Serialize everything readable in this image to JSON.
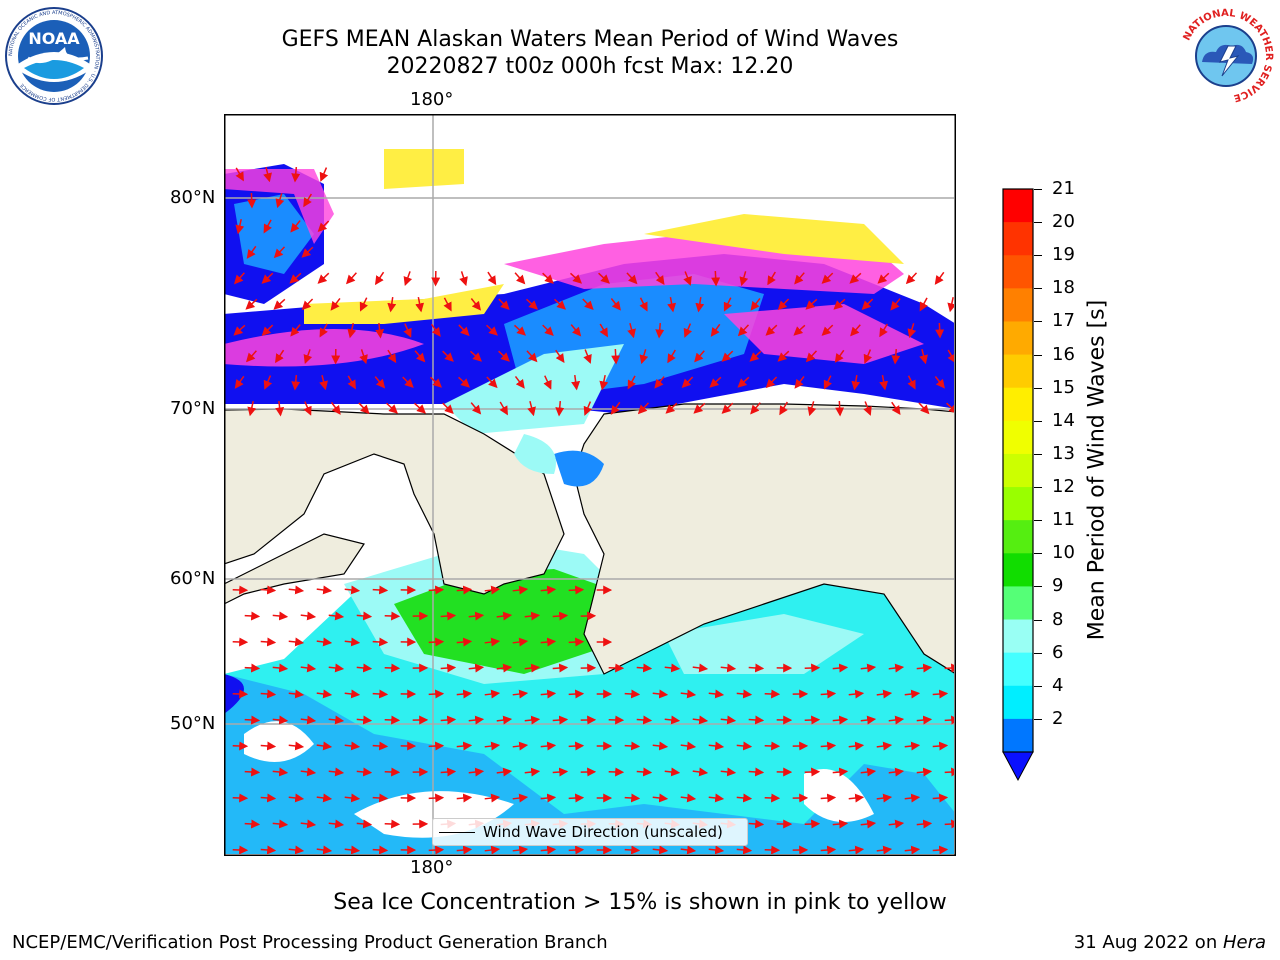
{
  "header": {
    "title_line1": "GEFS MEAN Alaskan Waters Mean Period of Wind Waves",
    "title_line2": "20220827 t00z 000h fcst   Max: 12.20"
  },
  "logos": {
    "left_text": "NOAA",
    "left_ring": "NATIONAL OCEANIC AND ATMOSPHERIC ADMINISTRATION · U.S. DEPARTMENT OF COMMERCE",
    "right_ring": "NATIONAL WEATHER SERVICE"
  },
  "map": {
    "lon_label_top": "180°",
    "lon_label_bottom": "180°",
    "lat_labels": [
      "80°N",
      "70°N",
      "60°N",
      "50°N"
    ],
    "legend_label": "Wind Wave Direction (unscaled)",
    "colors": {
      "land": "#efedde",
      "ocean_cyan": "#2ff0f0",
      "ocean_light": "#9cfaf6",
      "blue": "#1010f0",
      "mid_blue": "#1a8cff",
      "green": "#22e022",
      "pink": "#ff44dd",
      "yellow": "#ffee44",
      "arrow": "#ee1111"
    }
  },
  "colorbar": {
    "label": "Mean Period of Wind Waves [s]",
    "ticks": [
      "21",
      "20",
      "19",
      "18",
      "17",
      "16",
      "15",
      "14",
      "13",
      "12",
      "11",
      "10",
      "9",
      "8",
      "6",
      "4",
      "2"
    ],
    "colors": [
      "#ff0000",
      "#ff3300",
      "#ff5500",
      "#ff8000",
      "#ffaa00",
      "#ffcc00",
      "#ffee00",
      "#f0ff00",
      "#ccff00",
      "#99ff00",
      "#55ee11",
      "#11dd00",
      "#55ff77",
      "#99fff4",
      "#44ffff",
      "#00eeff",
      "#0077ff"
    ],
    "under_color": "#0a10ff"
  },
  "caption": "Sea Ice Concentration > 15% is shown in pink to yellow",
  "footer": {
    "left": "NCEP/EMC/Verification Post Processing Product Generation Branch",
    "right_date": "31 Aug 2022 on ",
    "right_host": "Hera"
  }
}
